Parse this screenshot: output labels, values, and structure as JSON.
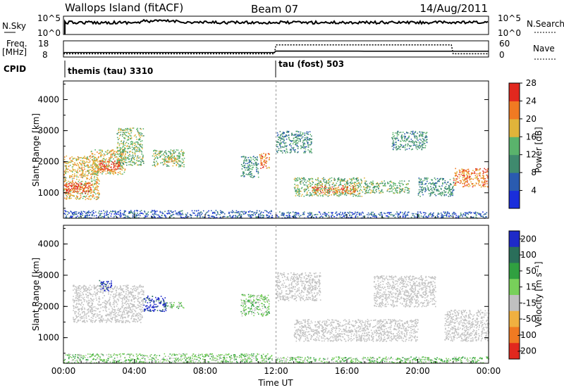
{
  "header": {
    "station": "Wallops Island (fitACF)",
    "beam": "Beam 07",
    "date": "14/Aug/2011"
  },
  "strip": {
    "nsky_label": "N.Sky",
    "nsky_tick_top": "10^5",
    "nsky_tick_bottom": "10^0",
    "nsearch_label": "N.Search",
    "nsearch_tick_top": "10^5",
    "nsearch_tick_bottom": "10^0",
    "freq_label": "Freq.",
    "freq_unit": "[MHz]",
    "freq_ticks": [
      "18",
      "8"
    ],
    "nave_label": "Nave",
    "nave_ticks": [
      "60",
      "0"
    ],
    "cpid_label": "CPID",
    "cpid_segments": [
      {
        "label": "themis (tau) 3310",
        "start_hour": 0,
        "end_hour": 12
      },
      {
        "label": "tau (fost) 503",
        "start_hour": 12,
        "end_hour": 24
      }
    ],
    "freq_series": [
      [
        0,
        10.8
      ],
      [
        11.9,
        10.8
      ],
      [
        12,
        11.7
      ],
      [
        17,
        11.6
      ],
      [
        22,
        11.6
      ],
      [
        24,
        11.6
      ]
    ],
    "nave_series": [
      [
        0,
        12
      ],
      [
        11.9,
        12
      ],
      [
        12,
        45
      ],
      [
        21.9,
        45
      ],
      [
        22,
        12
      ],
      [
        24,
        12
      ]
    ]
  },
  "colors": {
    "scatter_gray": "#b4b4b4",
    "ground_scatter": "#c2c2c2"
  },
  "chart_data": [
    {
      "type": "heatmap",
      "panel": "power",
      "ylabel": "Slant Range [km]",
      "xlabel": "",
      "xlim": [
        0,
        24
      ],
      "ylim": [
        180,
        4600
      ],
      "x_ticks": [
        "00:00",
        "04:00",
        "08:00",
        "12:00",
        "16:00",
        "20:00",
        "00:00"
      ],
      "y_ticks": [
        1000,
        2000,
        3000,
        4000
      ],
      "colorbar": {
        "label": "Power [dB]",
        "ticks": [
          "4",
          "8",
          "12",
          "16",
          "20",
          "24",
          "28"
        ],
        "colors": [
          "#1a2edb",
          "#2a5bb0",
          "#3f8a6e",
          "#5ab36c",
          "#e0b43a",
          "#f07a22",
          "#e1281e"
        ]
      },
      "regions": [
        {
          "t0": 0.0,
          "t1": 2.0,
          "r0": 800,
          "r1": 2200,
          "level": 4
        },
        {
          "t0": 0.0,
          "t1": 1.6,
          "r0": 1000,
          "r1": 1350,
          "level": 6
        },
        {
          "t0": 1.5,
          "t1": 3.5,
          "r0": 1600,
          "r1": 2400,
          "level": 4
        },
        {
          "t0": 2.0,
          "t1": 3.2,
          "r0": 1750,
          "r1": 2050,
          "level": 6
        },
        {
          "t0": 3.0,
          "t1": 4.5,
          "r0": 1900,
          "r1": 3100,
          "level": 3
        },
        {
          "t0": 5.0,
          "t1": 6.8,
          "r0": 1850,
          "r1": 2400,
          "level": 3
        },
        {
          "t0": 5.6,
          "t1": 6.4,
          "r0": 2000,
          "r1": 2200,
          "level": 4
        },
        {
          "t0": 10.0,
          "t1": 11.0,
          "r0": 1500,
          "r1": 2200,
          "level": 2
        },
        {
          "t0": 11.0,
          "t1": 11.6,
          "r0": 1800,
          "r1": 2300,
          "level": 5
        },
        {
          "t0": 12.0,
          "t1": 14.0,
          "r0": 2300,
          "r1": 3000,
          "level": 2
        },
        {
          "t0": 13.0,
          "t1": 17.0,
          "r0": 900,
          "r1": 1500,
          "level": 3
        },
        {
          "t0": 14.0,
          "t1": 16.5,
          "r0": 1000,
          "r1": 1250,
          "level": 5
        },
        {
          "t0": 17.0,
          "t1": 19.5,
          "r0": 1000,
          "r1": 1400,
          "level": 3
        },
        {
          "t0": 18.5,
          "t1": 20.5,
          "r0": 2400,
          "r1": 3000,
          "level": 2
        },
        {
          "t0": 20.0,
          "t1": 22.0,
          "r0": 900,
          "r1": 1500,
          "level": 2
        },
        {
          "t0": 22.0,
          "t1": 24.0,
          "r0": 1200,
          "r1": 1800,
          "level": 5
        },
        {
          "t0": 0.0,
          "t1": 11.8,
          "r0": 200,
          "r1": 450,
          "level": 1
        },
        {
          "t0": 12.0,
          "t1": 24.0,
          "r0": 200,
          "r1": 400,
          "level": 1
        }
      ]
    },
    {
      "type": "heatmap",
      "panel": "velocity",
      "ylabel": "Slant Range [km]",
      "xlabel": "Time UT",
      "xlim": [
        0,
        24
      ],
      "ylim": [
        180,
        4600
      ],
      "x_ticks": [
        "00:00",
        "04:00",
        "08:00",
        "12:00",
        "16:00",
        "20:00",
        "00:00"
      ],
      "y_ticks": [
        1000,
        2000,
        3000,
        4000
      ],
      "colorbar": {
        "label": "Velocity [m s⁻¹]",
        "ticks": [
          "200",
          "100",
          "50",
          "15",
          "-15",
          "-50",
          "-100",
          "-200"
        ],
        "colors": [
          "#1e2ac8",
          "#2a6e5a",
          "#30a040",
          "#78d05a",
          "#c0c0c0",
          "#f0b040",
          "#f07a22",
          "#e1281e"
        ]
      },
      "regions": [
        {
          "t0": 0.5,
          "t1": 4.5,
          "r0": 1500,
          "r1": 2700,
          "level": 4
        },
        {
          "t0": 2.0,
          "t1": 2.7,
          "r0": 2500,
          "r1": 2850,
          "level": 0
        },
        {
          "t0": 4.5,
          "t1": 5.8,
          "r0": 1850,
          "r1": 2350,
          "level": 0
        },
        {
          "t0": 5.8,
          "t1": 6.8,
          "r0": 1950,
          "r1": 2150,
          "level": 3
        },
        {
          "t0": 10.0,
          "t1": 11.6,
          "r0": 1700,
          "r1": 2400,
          "level": 3
        },
        {
          "t0": 12.0,
          "t1": 14.5,
          "r0": 2200,
          "r1": 3100,
          "level": 4
        },
        {
          "t0": 13.0,
          "t1": 20.0,
          "r0": 900,
          "r1": 1600,
          "level": 4
        },
        {
          "t0": 17.5,
          "t1": 21.0,
          "r0": 2000,
          "r1": 3000,
          "level": 4
        },
        {
          "t0": 21.5,
          "t1": 24.0,
          "r0": 900,
          "r1": 1900,
          "level": 4
        },
        {
          "t0": 0.0,
          "t1": 11.8,
          "r0": 200,
          "r1": 500,
          "level": 3
        },
        {
          "t0": 12.0,
          "t1": 24.0,
          "r0": 200,
          "r1": 400,
          "level": 3
        }
      ]
    }
  ]
}
